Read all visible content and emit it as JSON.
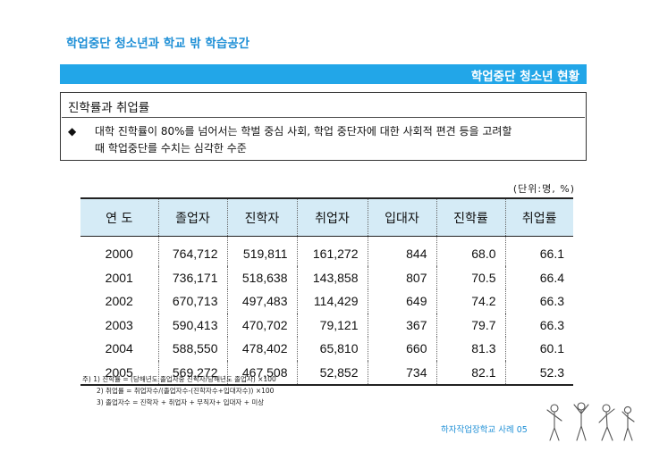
{
  "header": {
    "title": "학업중단 청소년과 학교 밖 학습공간"
  },
  "banner": {
    "title": "학업중단 청소년 현황"
  },
  "box": {
    "title": "진학률과 취업률",
    "bullet": "◆",
    "line1": "대학 진학률이 80%를 넘어서는 학벌 중심 사회, 학업 중단자에 대한 사회적 편견 등을 고려할",
    "line2": "때 학업중단를 수치는 심각한 수준"
  },
  "table": {
    "unit": "(단위:명, %)",
    "headers": [
      "연 도",
      "졸업자",
      "진학자",
      "취업자",
      "입대자",
      "진학률",
      "취업률"
    ],
    "rows": [
      [
        "2000",
        "764,712",
        "519,811",
        "161,272",
        "844",
        "68.0",
        "66.1"
      ],
      [
        "2001",
        "736,171",
        "518,638",
        "143,858",
        "807",
        "70.5",
        "66.4"
      ],
      [
        "2002",
        "670,713",
        "497,483",
        "114,429",
        "649",
        "74.2",
        "66.3"
      ],
      [
        "2003",
        "590,413",
        "470,702",
        "79,121",
        "367",
        "79.7",
        "66.3"
      ],
      [
        "2004",
        "588,550",
        "478,402",
        "65,810",
        "660",
        "81.3",
        "60.1"
      ],
      [
        "2005",
        "569,272",
        "467,508",
        "52,852",
        "734",
        "82.1",
        "52.3"
      ]
    ]
  },
  "notes": [
    "주) 1) 진학률 = (당해년도 졸업자중 진학자/당해년도 졸업자) ×100",
    "2) 취업률 = 취업자수/(졸업자수-(진학자수+입대자수)) ×100",
    "3) 졸업자수 = 진학자 + 취업자 + 무직자+ 입대자 + 미상"
  ],
  "footer": {
    "text": "하자작업장학교 사례 05"
  },
  "colors": {
    "accent": "#1e8fd6",
    "banner": "#22a6e8",
    "header_fill": "#d5ebf6"
  }
}
